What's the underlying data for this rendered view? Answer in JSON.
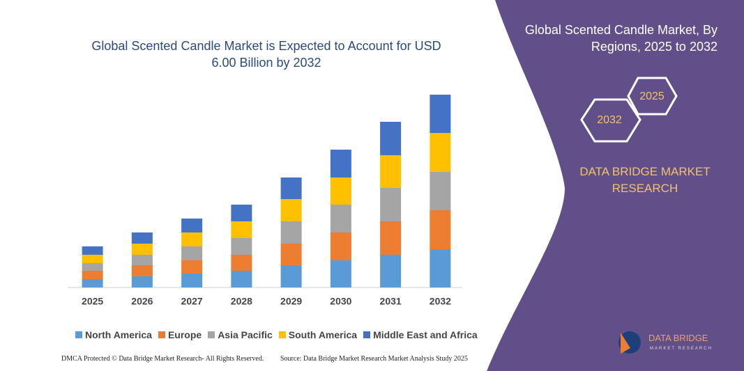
{
  "chart_data": {
    "type": "bar",
    "stacked": true,
    "title": "Global Scented Candle Market is Expected to Account for USD 6.00 Billion by 2032",
    "categories": [
      "2025",
      "2026",
      "2027",
      "2028",
      "2029",
      "2030",
      "2031",
      "2032"
    ],
    "series": [
      {
        "name": "North America",
        "color": "#5b9bd5",
        "values": [
          12,
          16,
          20,
          24,
          32,
          39,
          47,
          55
        ]
      },
      {
        "name": "Europe",
        "color": "#ed7d31",
        "values": [
          12,
          16,
          19,
          23,
          31,
          40,
          48,
          56
        ]
      },
      {
        "name": "Asia Pacific",
        "color": "#a5a5a5",
        "values": [
          11,
          15,
          20,
          24,
          32,
          40,
          48,
          55
        ]
      },
      {
        "name": "South America",
        "color": "#ffc000",
        "values": [
          12,
          16,
          20,
          24,
          32,
          39,
          47,
          56
        ]
      },
      {
        "name": "Middle East and Africa",
        "color": "#4472c4",
        "values": [
          12,
          16,
          20,
          24,
          31,
          40,
          48,
          55
        ]
      }
    ],
    "ylim": [
      0,
      290
    ]
  },
  "panel": {
    "title": "Global Scented Candle Market, By Regions, 2025 to 2032",
    "hexagons": [
      "2025",
      "2032"
    ],
    "brand": "DATA BRIDGE MARKET RESEARCH",
    "logo": {
      "name": "DATA BRIDGE",
      "tagline": "MARKET RESEARCH"
    }
  },
  "footer": {
    "left": "DMCA Protected © Data Bridge Market Research- All Rights Reserved.",
    "right": "Source: Data Bridge Market Research Market Analysis Study 2025"
  }
}
